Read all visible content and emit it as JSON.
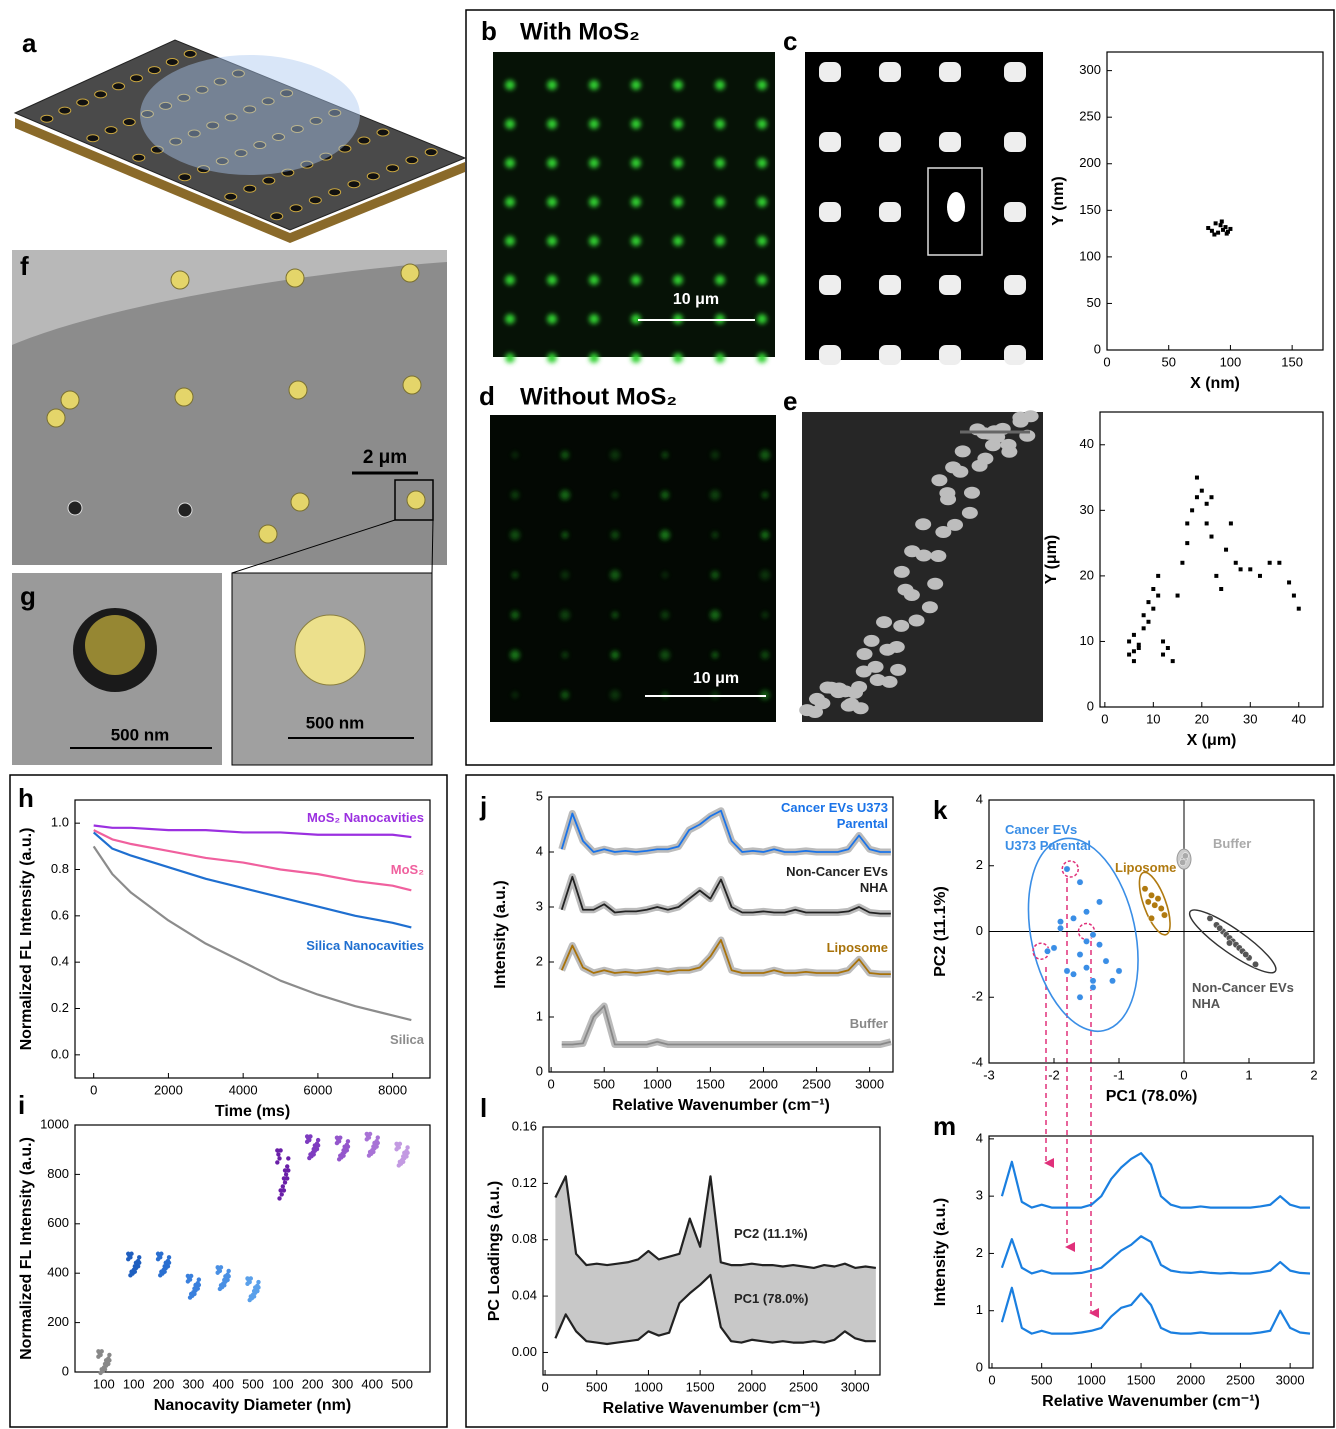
{
  "panel_labels": [
    "a",
    "b",
    "c",
    "d",
    "e",
    "f",
    "g",
    "h",
    "i",
    "j",
    "k",
    "l",
    "m"
  ],
  "images": {
    "b": {
      "title": "With MoS₂",
      "scale_bar": "10 μm"
    },
    "d": {
      "title": "Without MoS₂",
      "scale_bar": "10 μm"
    },
    "f": {
      "scale_bar": "2 μm"
    },
    "g": {
      "scale_bar_left": "500 nm",
      "scale_bar_right": "500 nm"
    }
  },
  "chart_data": [
    {
      "type": "scatter",
      "xlabel": "X (nm)",
      "ylabel": "Y (nm)",
      "xlim": [
        0,
        175
      ],
      "ylim": [
        0,
        320
      ],
      "xticks": [
        0,
        50,
        100,
        150
      ],
      "yticks": [
        0,
        50,
        100,
        150,
        200,
        250,
        300
      ],
      "series": [
        {
          "color": "#000000",
          "x": [
            82,
            85,
            88,
            90,
            92,
            94,
            96,
            98,
            100,
            87,
            93,
            97
          ],
          "values": [
            131,
            128,
            136,
            126,
            134,
            129,
            132,
            127,
            130,
            124,
            138,
            125
          ]
        }
      ]
    },
    {
      "type": "scatter",
      "xlabel": "X (μm)",
      "ylabel": "Y (μm)",
      "xlim": [
        -1,
        45
      ],
      "ylim": [
        0,
        45
      ],
      "xticks": [
        0,
        10,
        20,
        30,
        40
      ],
      "yticks": [
        0,
        10,
        20,
        30,
        40
      ],
      "series": [
        {
          "color": "#000000",
          "x": [
            5,
            5,
            6,
            6,
            7,
            8,
            8,
            9,
            9,
            10,
            10,
            11,
            11,
            12,
            12,
            13,
            14,
            15,
            16,
            17,
            17,
            18,
            19,
            19,
            20,
            21,
            21,
            22,
            22,
            23,
            24,
            25,
            26,
            27,
            28,
            30,
            32,
            34,
            36,
            38,
            39,
            40,
            7,
            6
          ],
          "values": [
            8,
            10,
            7,
            11,
            9,
            12,
            14,
            13,
            16,
            15,
            18,
            20,
            17,
            10,
            8,
            9,
            7,
            17,
            22,
            25,
            28,
            30,
            32,
            35,
            33,
            31,
            28,
            26,
            32,
            20,
            18,
            24,
            28,
            22,
            21,
            21,
            20,
            22,
            22,
            19,
            17,
            15,
            9.5,
            8.5
          ]
        }
      ]
    },
    {
      "type": "line",
      "xlabel": "Time (ms)",
      "ylabel": "Normalized FL Intensity (a.u.)",
      "xlim": [
        -500,
        9000
      ],
      "ylim": [
        -0.1,
        1.1
      ],
      "xticks": [
        0,
        2000,
        4000,
        6000,
        8000
      ],
      "yticks": [
        {
          "value": 0,
          "label": "0.0"
        },
        0.2,
        0.4,
        0.6,
        0.8,
        {
          "value": 1,
          "label": "1.0"
        }
      ],
      "x": [
        0,
        500,
        1000,
        2000,
        3000,
        4000,
        5000,
        6000,
        7000,
        8000,
        8500
      ],
      "series": [
        {
          "name": "MoS₂ Nanocavities",
          "color": "#9b30e0",
          "values": [
            0.99,
            0.98,
            0.98,
            0.97,
            0.97,
            0.96,
            0.96,
            0.95,
            0.95,
            0.95,
            0.94
          ]
        },
        {
          "name": "MoS₂",
          "color": "#f0609e",
          "values": [
            0.97,
            0.93,
            0.91,
            0.88,
            0.85,
            0.83,
            0.8,
            0.78,
            0.75,
            0.73,
            0.71
          ]
        },
        {
          "name": "Silica Nanocavities",
          "color": "#1f6fd0",
          "values": [
            0.96,
            0.89,
            0.86,
            0.81,
            0.76,
            0.72,
            0.68,
            0.64,
            0.6,
            0.57,
            0.55
          ]
        },
        {
          "name": "Silica",
          "color": "#8c8c8c",
          "values": [
            0.9,
            0.78,
            0.7,
            0.58,
            0.48,
            0.4,
            0.32,
            0.26,
            0.21,
            0.17,
            0.15
          ]
        }
      ]
    },
    {
      "type": "strip",
      "xlabel": "Nanocavity Diameter (nm)",
      "ylabel": "Normalized FL Intensity (a.u.)",
      "ylim": [
        0,
        1000
      ],
      "yticks": [
        0,
        200,
        400,
        600,
        800,
        1000
      ],
      "categories": [
        "100",
        "100",
        "200",
        "300",
        "400",
        "500",
        "100",
        "200",
        "300",
        "400",
        "500"
      ],
      "values": [
        40,
        435,
        435,
        345,
        380,
        335,
        800,
        910,
        905,
        920,
        880
      ],
      "colors": [
        "#888888",
        "#1f5fbf",
        "#2a6fd0",
        "#3a80dd",
        "#4a90e4",
        "#5aa0ea",
        "#6a1fa8",
        "#7e3cc0",
        "#9456cc",
        "#a872d6",
        "#c39ae2"
      ]
    },
    {
      "type": "line",
      "band": true,
      "xlabel": "Relative Wavenumber (cm⁻¹)",
      "ylabel": "Intensity (a.u.)",
      "xlim": [
        -20,
        3220
      ],
      "ylim": [
        0,
        5
      ],
      "xticks": [
        0,
        500,
        1000,
        1500,
        2000,
        2500,
        3000
      ],
      "yticks": [
        0,
        1,
        2,
        3,
        4,
        5
      ],
      "x": [
        100,
        200,
        300,
        400,
        500,
        600,
        700,
        800,
        900,
        1000,
        1100,
        1200,
        1300,
        1400,
        1500,
        1600,
        1700,
        1800,
        1900,
        2000,
        2100,
        2200,
        2300,
        2400,
        2500,
        2600,
        2700,
        2800,
        2900,
        3000,
        3100,
        3200
      ],
      "series": [
        {
          "name": "Cancer EVs U373 Parental",
          "color": "#1a73e8",
          "values": [
            4.05,
            4.7,
            4.2,
            4.0,
            4.05,
            4.0,
            4.02,
            4.0,
            4.02,
            4.05,
            4.05,
            4.1,
            4.4,
            4.5,
            4.65,
            4.75,
            4.2,
            4.0,
            4.02,
            4.0,
            4.05,
            4.0,
            4.0,
            4.02,
            4.0,
            4.0,
            4.0,
            4.05,
            4.3,
            4.05,
            4.0,
            4.0
          ]
        },
        {
          "name": "Non-Cancer EVs NHA",
          "color": "#222222",
          "values": [
            2.95,
            3.55,
            2.95,
            2.95,
            3.05,
            2.9,
            2.92,
            2.92,
            2.95,
            3.0,
            2.95,
            3.0,
            3.15,
            3.3,
            3.15,
            3.5,
            3.0,
            2.9,
            2.9,
            2.92,
            2.9,
            2.9,
            2.95,
            2.9,
            2.9,
            2.9,
            2.9,
            2.92,
            3.0,
            2.9,
            2.88,
            2.88
          ]
        },
        {
          "name": "Liposome",
          "color": "#a8720a",
          "values": [
            1.85,
            2.3,
            1.9,
            1.8,
            1.85,
            1.8,
            1.82,
            1.8,
            1.82,
            1.85,
            1.82,
            1.85,
            1.85,
            1.9,
            2.1,
            2.4,
            1.85,
            1.8,
            1.8,
            1.8,
            1.85,
            1.8,
            1.8,
            1.82,
            1.8,
            1.8,
            1.8,
            1.85,
            2.05,
            1.8,
            1.78,
            1.78
          ]
        },
        {
          "name": "Buffer",
          "color": "#888888",
          "values": [
            0.5,
            0.5,
            0.52,
            1.0,
            1.2,
            0.5,
            0.5,
            0.5,
            0.5,
            0.55,
            0.5,
            0.5,
            0.5,
            0.5,
            0.5,
            0.5,
            0.5,
            0.5,
            0.5,
            0.5,
            0.5,
            0.5,
            0.5,
            0.5,
            0.5,
            0.5,
            0.5,
            0.5,
            0.5,
            0.5,
            0.5,
            0.55
          ]
        }
      ]
    },
    {
      "type": "scatter",
      "quadrants": true,
      "xlabel": "PC1 (78.0%)",
      "ylabel": "PC2 (11.1%)",
      "xlim": [
        -3,
        2
      ],
      "ylim": [
        -4,
        4
      ],
      "xticks": [
        -3,
        -2,
        -1,
        0,
        1,
        2
      ],
      "yticks": [
        -4,
        -2,
        0,
        2,
        4
      ],
      "series": [
        {
          "name": "Cancer EVs U373 Parental",
          "color": "#3a8ee6",
          "x": [
            -1.8,
            -1.6,
            -1.7,
            -1.5,
            -1.9,
            -1.4,
            -1.3,
            -1.6,
            -2.0,
            -1.2,
            -1.5,
            -1.7,
            -1.1,
            -1.4,
            -1.6,
            -1.8,
            -1.3,
            -1.5,
            -2.1,
            -1.9,
            -1.0,
            -1.4
          ],
          "values": [
            1.9,
            1.5,
            0.4,
            0.6,
            0.1,
            -0.1,
            -0.4,
            -0.7,
            -0.5,
            -0.9,
            -1.1,
            -1.3,
            -1.5,
            -1.7,
            -2.0,
            -1.2,
            0.9,
            -0.3,
            -0.6,
            0.3,
            -1.2,
            -1.5
          ]
        },
        {
          "name": "Liposome",
          "color": "#b07a10",
          "x": [
            -0.6,
            -0.5,
            -0.4,
            -0.45,
            -0.35,
            -0.55,
            -0.3,
            -0.5
          ],
          "values": [
            1.3,
            1.1,
            1.0,
            0.8,
            0.7,
            0.9,
            0.5,
            0.4
          ]
        },
        {
          "name": "Buffer",
          "color": "#aaaaaa",
          "x": [
            0.0,
            0.02,
            -0.02
          ],
          "values": [
            2.2,
            2.3,
            2.1
          ]
        },
        {
          "name": "Non-Cancer EVs NHA",
          "color": "#555555",
          "x": [
            0.4,
            0.5,
            0.6,
            0.65,
            0.7,
            0.75,
            0.8,
            0.85,
            0.9,
            1.0,
            1.1,
            0.55,
            0.7,
            0.95
          ],
          "values": [
            0.4,
            0.2,
            0.0,
            -0.1,
            -0.2,
            -0.3,
            -0.4,
            -0.5,
            -0.6,
            -0.8,
            -1.0,
            0.1,
            -0.35,
            -0.7
          ]
        }
      ]
    },
    {
      "type": "line",
      "fill_between": true,
      "xlabel": "Relative Wavenumber (cm⁻¹)",
      "ylabel": "PC Loadings (a.u.)",
      "xlim": [
        -20,
        3240
      ],
      "ylim": [
        -0.016,
        0.16
      ],
      "xticks": [
        0,
        500,
        1000,
        1500,
        2000,
        2500,
        3000
      ],
      "yticks": [
        {
          "value": 0,
          "label": "0.00"
        },
        0.04,
        0.08,
        0.12,
        0.16
      ],
      "x": [
        100,
        200,
        300,
        400,
        500,
        600,
        700,
        800,
        900,
        1000,
        1100,
        1200,
        1300,
        1400,
        1500,
        1600,
        1700,
        1800,
        1900,
        2000,
        2100,
        2200,
        2300,
        2400,
        2500,
        2600,
        2700,
        2800,
        2900,
        3000,
        3100,
        3200
      ],
      "series": [
        {
          "name": "PC2 (11.1%)",
          "color": "#222222",
          "values": [
            0.11,
            0.125,
            0.07,
            0.062,
            0.063,
            0.062,
            0.063,
            0.064,
            0.066,
            0.072,
            0.066,
            0.068,
            0.07,
            0.095,
            0.075,
            0.125,
            0.064,
            0.062,
            0.062,
            0.063,
            0.062,
            0.062,
            0.061,
            0.062,
            0.061,
            0.06,
            0.062,
            0.061,
            0.063,
            0.06,
            0.061,
            0.06
          ]
        },
        {
          "name": "PC1 (78.0%)",
          "color": "#222222",
          "values": [
            0.01,
            0.027,
            0.015,
            0.008,
            0.007,
            0.006,
            0.007,
            0.008,
            0.009,
            0.015,
            0.012,
            0.014,
            0.035,
            0.042,
            0.048,
            0.055,
            0.018,
            0.008,
            0.007,
            0.009,
            0.008,
            0.007,
            0.008,
            0.007,
            0.007,
            0.008,
            0.007,
            0.009,
            0.015,
            0.01,
            0.008,
            0.008
          ]
        }
      ]
    },
    {
      "type": "line",
      "xlabel": "Relative Wavenumber (cm⁻¹)",
      "ylabel": "Intensity (a.u.)",
      "xlim": [
        -30,
        3230
      ],
      "ylim": [
        0,
        4.05
      ],
      "xticks": [
        0,
        500,
        1000,
        1500,
        2000,
        2500,
        3000
      ],
      "yticks": [
        0,
        1,
        2,
        3,
        4
      ],
      "x": [
        100,
        200,
        300,
        400,
        500,
        600,
        700,
        800,
        900,
        1000,
        1100,
        1200,
        1300,
        1400,
        1500,
        1600,
        1700,
        1800,
        1900,
        2000,
        2100,
        2200,
        2300,
        2400,
        2500,
        2600,
        2700,
        2800,
        2900,
        3000,
        3100,
        3200
      ],
      "series": [
        {
          "color": "#1a7fe0",
          "values": [
            3.0,
            3.6,
            2.9,
            2.8,
            2.85,
            2.8,
            2.8,
            2.8,
            2.8,
            2.85,
            3.0,
            3.3,
            3.5,
            3.65,
            3.75,
            3.55,
            3.0,
            2.85,
            2.8,
            2.8,
            2.82,
            2.8,
            2.8,
            2.8,
            2.8,
            2.8,
            2.82,
            2.85,
            3.0,
            2.85,
            2.8,
            2.8
          ]
        },
        {
          "color": "#1a7fe0",
          "values": [
            1.75,
            2.25,
            1.75,
            1.65,
            1.7,
            1.65,
            1.65,
            1.65,
            1.66,
            1.7,
            1.75,
            1.9,
            2.05,
            2.15,
            2.3,
            2.2,
            1.8,
            1.7,
            1.67,
            1.66,
            1.68,
            1.66,
            1.65,
            1.66,
            1.65,
            1.65,
            1.67,
            1.7,
            1.85,
            1.7,
            1.66,
            1.65
          ]
        },
        {
          "color": "#1a7fe0",
          "values": [
            0.8,
            1.4,
            0.7,
            0.6,
            0.65,
            0.6,
            0.6,
            0.6,
            0.62,
            0.65,
            0.7,
            0.9,
            1.05,
            1.1,
            1.3,
            1.1,
            0.7,
            0.62,
            0.6,
            0.6,
            0.62,
            0.6,
            0.6,
            0.6,
            0.6,
            0.6,
            0.62,
            0.65,
            1.0,
            0.7,
            0.62,
            0.6
          ]
        }
      ]
    }
  ]
}
